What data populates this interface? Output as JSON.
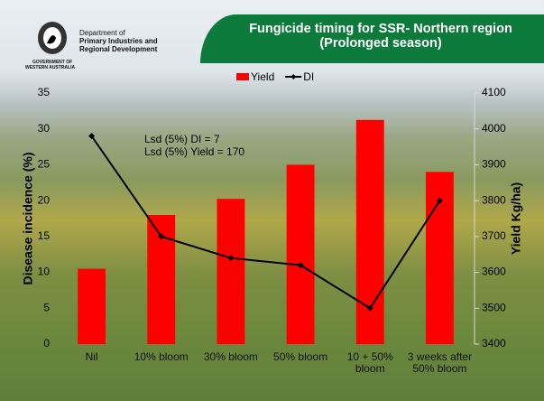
{
  "logo": {
    "lines": [
      "Department of",
      "Primary Industries and",
      "Regional Development"
    ],
    "government": [
      "GOVERNMENT OF",
      "WESTERN AUSTRALIA"
    ]
  },
  "chart_data": {
    "type": "bar",
    "title": "Fungicide timing for SSR- Northern region (Prolonged season)",
    "categories": [
      "Nil",
      "10% bloom",
      "30% bloom",
      "50% bloom",
      "10 + 50% bloom",
      "3 weeks after 50% bloom"
    ],
    "series": [
      {
        "name": "Yield",
        "type": "bar",
        "color": "#ff0000",
        "axis": "y2",
        "values": [
          3610,
          3760,
          3805,
          3900,
          4025,
          3880
        ]
      },
      {
        "name": "DI",
        "type": "line",
        "color": "#000000",
        "axis": "y",
        "values": [
          29,
          15,
          12,
          11,
          5,
          20
        ]
      }
    ],
    "ylabel": "Disease incidence (%)",
    "y2label": "Yield Kg/ha)",
    "ylim": [
      0,
      35
    ],
    "yticks": [
      0,
      5,
      10,
      15,
      20,
      25,
      30,
      35
    ],
    "y2lim": [
      3400,
      4100
    ],
    "y2ticks": [
      3400,
      3500,
      3600,
      3700,
      3800,
      3900,
      4000,
      4100
    ],
    "annotations": [
      "Lsd (5%) DI = 7",
      "Lsd (5%) Yield = 170"
    ],
    "legend": "top"
  }
}
